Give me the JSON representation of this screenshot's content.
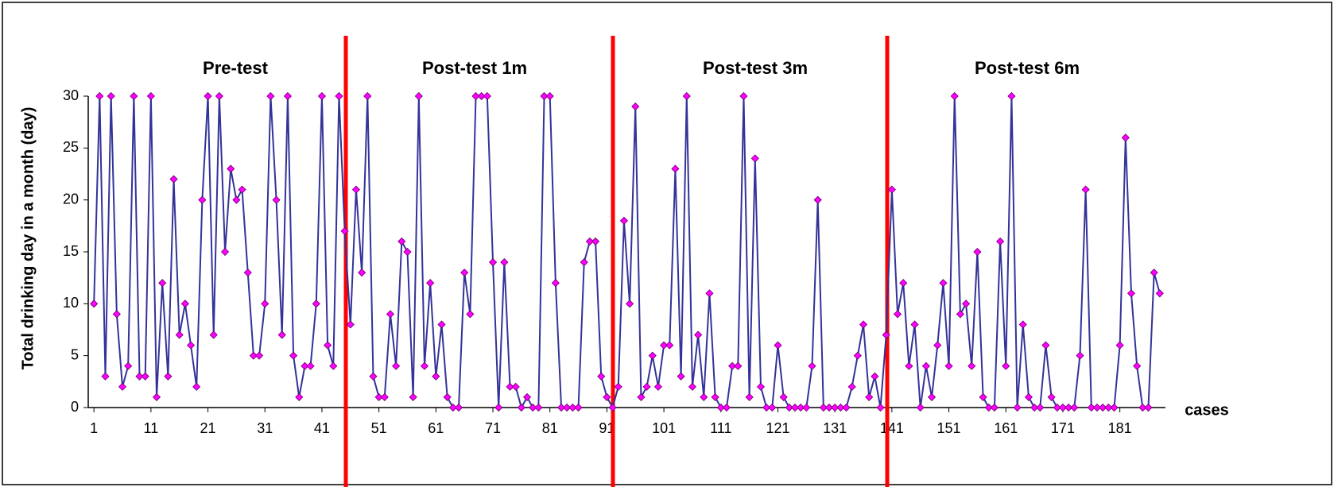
{
  "chart_data": {
    "type": "line",
    "y_label": "Total drinking day  in a month (day)",
    "x_label": "cases",
    "annotations": [
      "Pre-test",
      "Post-test 1m",
      "Post-test 3m",
      "Post-test 6m"
    ],
    "x": [
      1,
      2,
      3,
      4,
      5,
      6,
      7,
      8,
      9,
      10,
      11,
      12,
      13,
      14,
      15,
      16,
      17,
      18,
      19,
      20,
      21,
      22,
      23,
      24,
      25,
      26,
      27,
      28,
      29,
      30,
      31,
      32,
      33,
      34,
      35,
      36,
      37,
      38,
      39,
      40,
      41,
      42,
      43,
      44,
      45,
      46,
      47,
      48,
      49,
      50,
      51,
      52,
      53,
      54,
      55,
      56,
      57,
      58,
      59,
      60,
      61,
      62,
      63,
      64,
      65,
      66,
      67,
      68,
      69,
      70,
      71,
      72,
      73,
      74,
      75,
      76,
      77,
      78,
      79,
      80,
      81,
      82,
      83,
      84,
      85,
      86,
      87,
      88,
      89,
      90,
      91,
      92,
      93,
      94,
      95,
      96,
      97,
      98,
      99,
      100,
      101,
      102,
      103,
      104,
      105,
      106,
      107,
      108,
      109,
      110,
      111,
      112,
      113,
      114,
      115,
      116,
      117,
      118,
      119,
      120,
      121,
      122,
      123,
      124,
      125,
      126,
      127,
      128,
      129,
      130,
      131,
      132,
      133,
      134,
      135,
      136,
      137,
      138,
      139,
      140,
      141,
      142,
      143,
      144,
      145,
      146,
      147,
      148,
      149,
      150,
      151,
      152,
      153,
      154,
      155,
      156,
      157,
      158,
      159,
      160,
      161,
      162,
      163,
      164,
      165,
      166,
      167,
      168,
      169,
      170,
      171,
      172,
      173,
      174,
      175,
      176,
      177,
      178,
      179,
      180,
      181,
      182,
      183,
      184,
      185,
      186,
      187,
      188
    ],
    "series": [
      {
        "color": "#333399",
        "marker_color": "#ff00ff",
        "values": [
          10,
          30,
          3,
          30,
          9,
          2,
          4,
          30,
          3,
          3,
          30,
          1,
          12,
          3,
          22,
          7,
          10,
          6,
          2,
          20,
          30,
          7,
          30,
          15,
          23,
          20,
          21,
          13,
          5,
          5,
          10,
          30,
          20,
          7,
          30,
          5,
          1,
          4,
          4,
          10,
          30,
          6,
          4,
          30,
          17,
          8,
          21,
          13,
          30,
          3,
          1,
          1,
          9,
          4,
          16,
          15,
          1,
          30,
          4,
          12,
          3,
          8,
          1,
          0,
          0,
          13,
          9,
          30,
          30,
          30,
          14,
          0,
          14,
          2,
          2,
          0,
          1,
          0,
          0,
          30,
          30,
          12,
          0,
          0,
          0,
          0,
          14,
          16,
          16,
          3,
          1,
          0,
          2,
          18,
          10,
          29,
          1,
          2,
          5,
          2,
          6,
          6,
          23,
          3,
          30,
          2,
          7,
          1,
          11,
          1,
          0,
          0,
          4,
          4,
          30,
          1,
          24,
          2,
          0,
          0,
          6,
          1,
          0,
          0,
          0,
          0,
          4,
          20,
          0,
          0,
          0,
          0,
          0,
          2,
          5,
          8,
          1,
          3,
          0,
          7,
          21,
          9,
          12,
          4,
          8,
          0,
          4,
          1,
          6,
          12,
          4,
          30,
          9,
          10,
          4,
          15,
          1,
          0,
          0,
          16,
          4,
          30,
          0,
          8,
          1,
          0,
          0,
          6,
          1,
          0,
          0,
          0,
          0,
          5,
          21,
          0,
          0,
          0,
          0,
          0,
          6,
          26,
          11,
          4,
          0,
          0,
          13,
          11
        ]
      }
    ],
    "xlim": [
      0,
      189
    ],
    "xticks": [
      1,
      11,
      21,
      31,
      41,
      51,
      61,
      71,
      81,
      91,
      101,
      111,
      121,
      131,
      141,
      151,
      161,
      171,
      181
    ],
    "ylim": [
      0,
      30
    ],
    "yticks": [
      0,
      5,
      10,
      15,
      20,
      25,
      30
    ],
    "grid": false
  }
}
